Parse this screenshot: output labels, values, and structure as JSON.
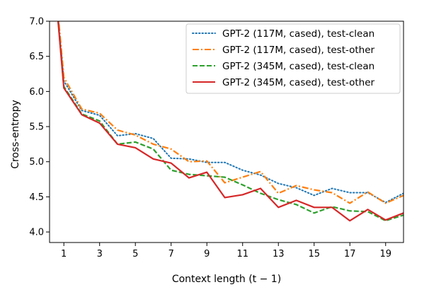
{
  "chart_data": {
    "type": "line",
    "xlabel": "Context length (t − 1)",
    "ylabel": "Cross-entropy",
    "xlim": [
      0.2,
      20
    ],
    "ylim": [
      3.85,
      7.0
    ],
    "xticks": [
      1,
      3,
      5,
      7,
      9,
      11,
      13,
      15,
      17,
      19
    ],
    "yticks": [
      4.0,
      4.5,
      5.0,
      5.5,
      6.0,
      6.5,
      7.0
    ],
    "ytick_labels": [
      "4.0",
      "4.5",
      "5.0",
      "5.5",
      "6.0",
      "6.5",
      "7.0"
    ],
    "grid": false,
    "legend_position": "top-right",
    "x": [
      0,
      1,
      2,
      3,
      4,
      5,
      6,
      7,
      8,
      9,
      10,
      11,
      12,
      13,
      14,
      15,
      16,
      17,
      18,
      19,
      20
    ],
    "series": [
      {
        "name": "GPT-2 (117M, cased), test-clean",
        "color": "#1f77b4",
        "style": "dotted",
        "values": [
          9.0,
          6.15,
          5.73,
          5.66,
          5.37,
          5.4,
          5.33,
          5.05,
          5.04,
          4.99,
          4.99,
          4.88,
          4.81,
          4.69,
          4.63,
          4.52,
          4.62,
          4.56,
          4.56,
          4.42,
          4.55
        ]
      },
      {
        "name": "GPT-2 (117M, cased), test-other",
        "color": "#ff7f0e",
        "style": "dashdot",
        "values": [
          9.0,
          6.2,
          5.75,
          5.69,
          5.45,
          5.38,
          5.25,
          5.18,
          5.0,
          5.01,
          4.7,
          4.78,
          4.86,
          4.55,
          4.66,
          4.6,
          4.56,
          4.41,
          4.57,
          4.41,
          4.52
        ]
      },
      {
        "name": "GPT-2 (345M, cased), test-clean",
        "color": "#2ca02c",
        "style": "dashed",
        "values": [
          9.0,
          6.07,
          5.68,
          5.58,
          5.25,
          5.28,
          5.18,
          4.88,
          4.82,
          4.8,
          4.78,
          4.67,
          4.55,
          4.46,
          4.39,
          4.27,
          4.36,
          4.3,
          4.29,
          4.16,
          4.24
        ]
      },
      {
        "name": "GPT-2 (345M, cased), test-other",
        "color": "#d62728",
        "style": "solid",
        "values": [
          9.0,
          6.05,
          5.67,
          5.55,
          5.25,
          5.2,
          5.04,
          4.98,
          4.77,
          4.85,
          4.49,
          4.53,
          4.62,
          4.35,
          4.45,
          4.35,
          4.35,
          4.16,
          4.32,
          4.17,
          4.27
        ]
      }
    ]
  }
}
